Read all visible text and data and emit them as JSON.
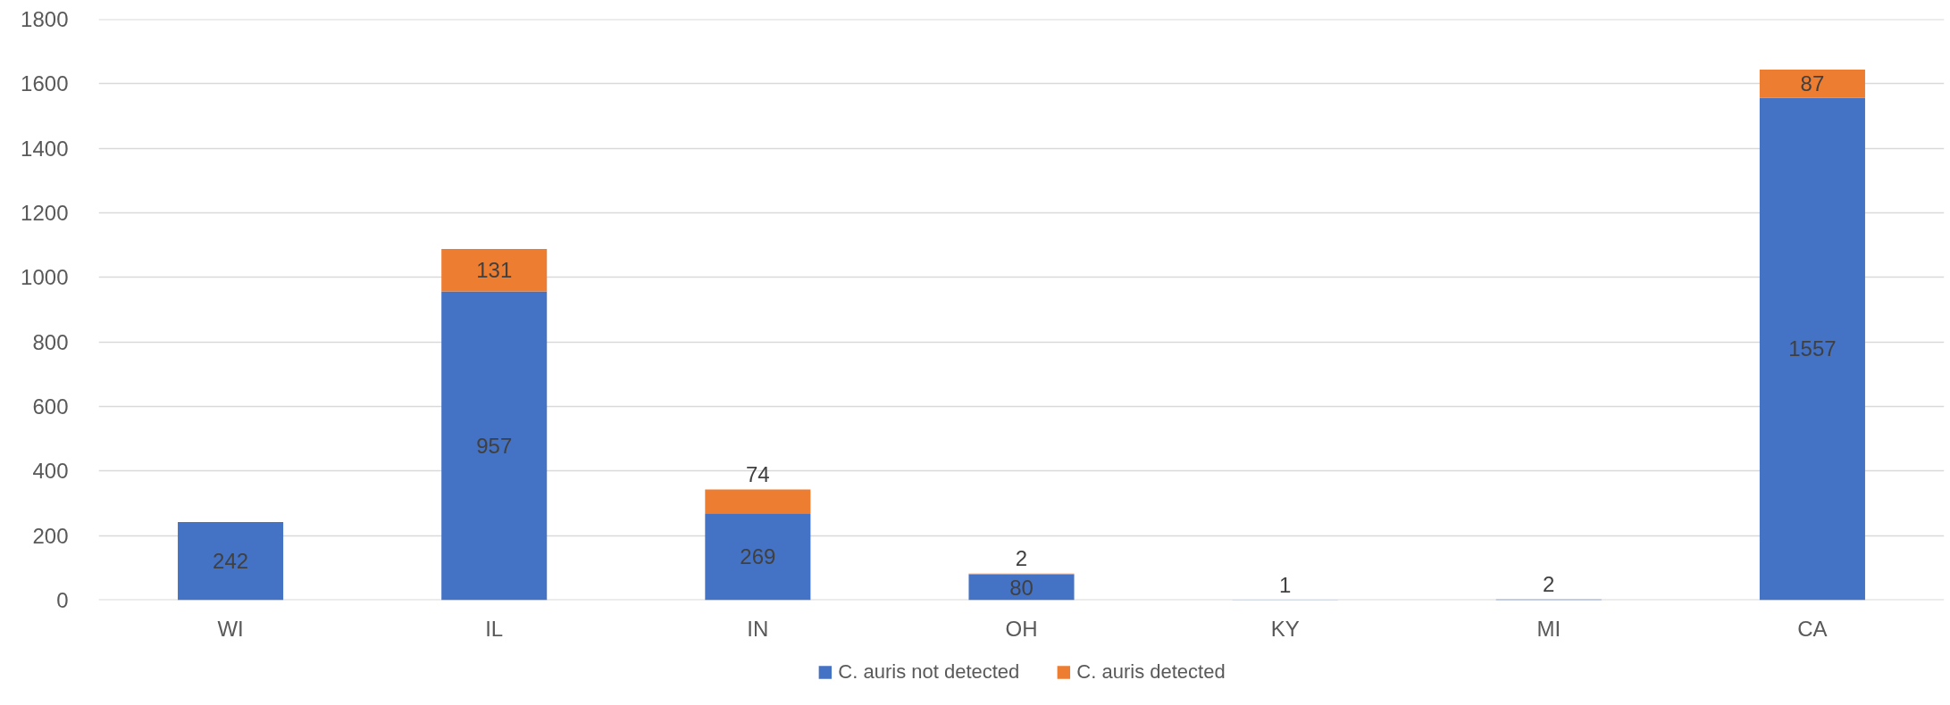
{
  "chart_data": {
    "type": "bar",
    "stacked": true,
    "categories": [
      "WI",
      "IL",
      "IN",
      "OH",
      "KY",
      "MI",
      "CA"
    ],
    "series": [
      {
        "name": "C. auris not detected",
        "color": "#4472c4",
        "values": [
          242,
          957,
          269,
          80,
          1,
          2,
          1557
        ]
      },
      {
        "name": "C. auris detected",
        "color": "#ed7d31",
        "values": [
          null,
          131,
          74,
          2,
          null,
          null,
          87
        ]
      }
    ],
    "ylim": [
      0,
      1800
    ],
    "yticks": [
      0,
      200,
      400,
      600,
      800,
      1000,
      1200,
      1400,
      1600,
      1800
    ],
    "grid": "y",
    "legend": "bottom",
    "data_labels": true
  }
}
